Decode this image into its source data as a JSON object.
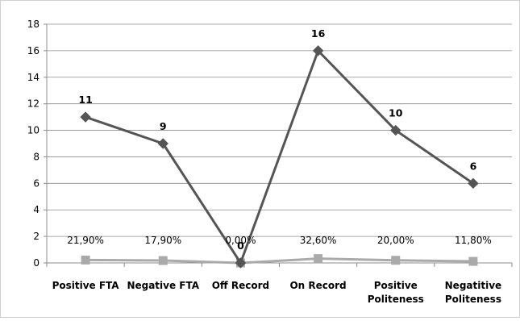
{
  "chart_data": {
    "type": "line",
    "title": "",
    "xlabel": "",
    "ylabel": "",
    "ylim": [
      0,
      18
    ],
    "yticks": [
      0,
      2,
      4,
      6,
      8,
      10,
      12,
      14,
      16,
      18
    ],
    "ytick_labels": [
      "0",
      "2",
      "4",
      "6",
      "8",
      "10",
      "12",
      "14",
      "16",
      "18"
    ],
    "grid": true,
    "legend": "none",
    "categories": [
      [
        "Positive FTA"
      ],
      [
        "Negative FTA"
      ],
      [
        "Off Record"
      ],
      [
        "On Record"
      ],
      [
        "Positive",
        "Politeness"
      ],
      [
        "Negatitive",
        "Politeness"
      ]
    ],
    "series": [
      {
        "values": [
          11,
          9,
          0,
          16,
          10,
          6
        ],
        "labels": [
          "11",
          "9",
          "0",
          "16",
          "10",
          "6"
        ],
        "color": "#555555",
        "marker": "diamond"
      },
      {
        "values": [
          0.219,
          0.179,
          0.0,
          0.326,
          0.2,
          0.118
        ],
        "labels": [
          "21,90%",
          "17,90%",
          "0,00%",
          "32,60%",
          "20,00%",
          "11,80%"
        ],
        "color": "#aaaaaa",
        "marker": "square"
      }
    ]
  }
}
